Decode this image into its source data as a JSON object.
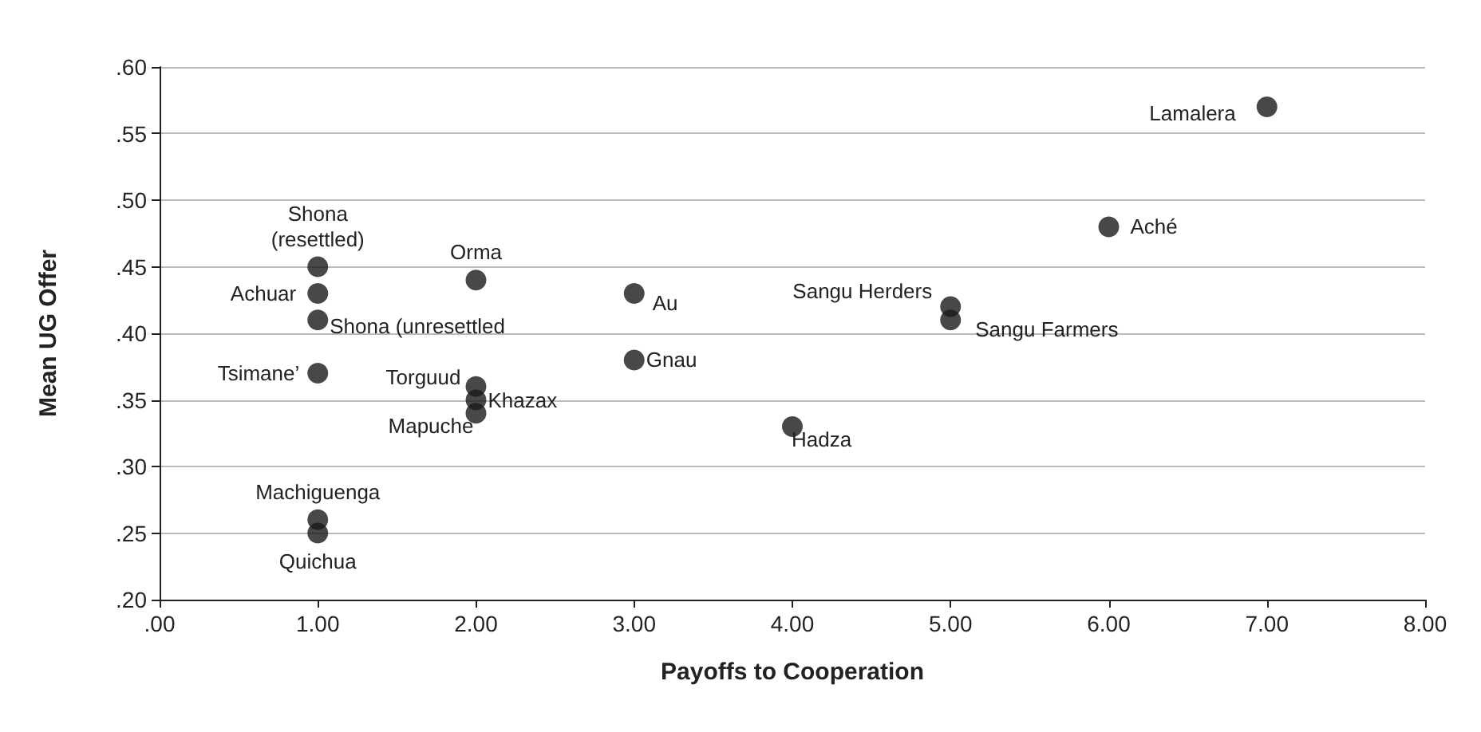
{
  "chart_data": {
    "type": "scatter",
    "xlabel": "Payoffs to Cooperation",
    "ylabel": "Mean UG Offer",
    "x": [
      1,
      1,
      1,
      1,
      2,
      2,
      2,
      2,
      1,
      1,
      7,
      6,
      3,
      3,
      5,
      5,
      4
    ],
    "values": [
      0.45,
      0.43,
      0.41,
      0.37,
      0.44,
      0.36,
      0.35,
      0.34,
      0.26,
      0.25,
      0.57,
      0.48,
      0.43,
      0.38,
      0.42,
      0.41,
      0.33
    ],
    "color": "#1a1a1a",
    "marker": "circle",
    "grid": "y",
    "xlim": [
      0,
      8
    ],
    "ylim": [
      0.2,
      0.6
    ],
    "xticks": [
      {
        "value": 0,
        "label": ".00"
      },
      {
        "value": 1,
        "label": "1.00"
      },
      {
        "value": 2,
        "label": "2.00"
      },
      {
        "value": 3,
        "label": "3.00"
      },
      {
        "value": 4,
        "label": "4.00"
      },
      {
        "value": 5,
        "label": "5.00"
      },
      {
        "value": 6,
        "label": "6.00"
      },
      {
        "value": 7,
        "label": "7.00"
      },
      {
        "value": 8,
        "label": "8.00"
      }
    ],
    "yticks": [
      {
        "value": 0.2,
        "label": ".20"
      },
      {
        "value": 0.25,
        "label": ".25"
      },
      {
        "value": 0.3,
        "label": ".30"
      },
      {
        "value": 0.35,
        "label": ".35"
      },
      {
        "value": 0.4,
        "label": ".40"
      },
      {
        "value": 0.45,
        "label": ".45"
      },
      {
        "value": 0.5,
        "label": ".50"
      },
      {
        "value": 0.55,
        "label": ".55"
      },
      {
        "value": 0.6,
        "label": ".60"
      }
    ],
    "annotations": [
      {
        "text": "Shona\n(resettled)",
        "x": 1,
        "y": 0.45
      },
      {
        "text": "Achuar",
        "x": 1,
        "y": 0.43
      },
      {
        "text": "Shona (unresettled",
        "x": 1,
        "y": 0.41
      },
      {
        "text": "Tsimane’",
        "x": 1,
        "y": 0.37
      },
      {
        "text": "Orma",
        "x": 2,
        "y": 0.44
      },
      {
        "text": "Torguud",
        "x": 2,
        "y": 0.36
      },
      {
        "text": "Khazax",
        "x": 2,
        "y": 0.35
      },
      {
        "text": "Mapuche",
        "x": 2,
        "y": 0.34
      },
      {
        "text": "Machiguenga",
        "x": 1,
        "y": 0.26
      },
      {
        "text": "Quichua",
        "x": 1,
        "y": 0.25
      },
      {
        "text": "Lamalera",
        "x": 7,
        "y": 0.57
      },
      {
        "text": "Aché",
        "x": 6,
        "y": 0.48
      },
      {
        "text": "Au",
        "x": 3,
        "y": 0.43
      },
      {
        "text": "Gnau",
        "x": 3,
        "y": 0.38
      },
      {
        "text": "Sangu Herders",
        "x": 5,
        "y": 0.42
      },
      {
        "text": "Sangu Farmers",
        "x": 5,
        "y": 0.41
      },
      {
        "text": "Hadza",
        "x": 4,
        "y": 0.33
      }
    ]
  }
}
